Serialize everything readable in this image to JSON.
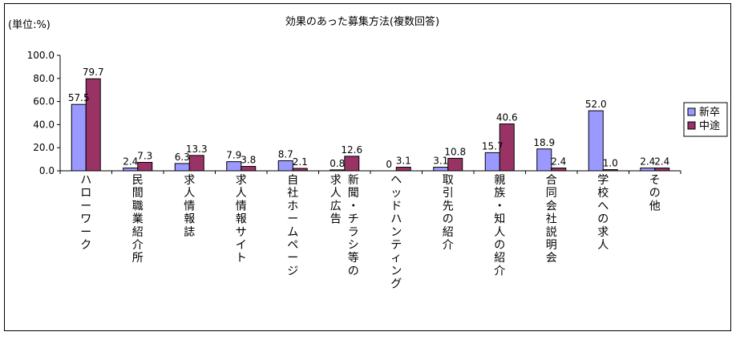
{
  "chart_data": {
    "type": "bar",
    "title": "効果のあった募集方法(複数回答)",
    "unit_label": "(単位:%)",
    "ylim": [
      0,
      100
    ],
    "y_ticks": [
      "0.0",
      "20.0",
      "40.0",
      "60.0",
      "80.0",
      "100.0"
    ],
    "categories": [
      [
        "ハローワーク"
      ],
      [
        "民間職業紹介所"
      ],
      [
        "求人情報誌"
      ],
      [
        "求人情報サイト"
      ],
      [
        "自社ホームページ"
      ],
      [
        "新聞・チラシ等の",
        "求人広告"
      ],
      [
        "ヘッドハンティング"
      ],
      [
        "取引先の紹介"
      ],
      [
        "親族・知人の紹介"
      ],
      [
        "合同会社説明会"
      ],
      [
        "学校への求人"
      ],
      [
        "その他"
      ]
    ],
    "series": [
      {
        "name": "新卒",
        "color": "#9999ff",
        "values": [
          57.5,
          2.4,
          6.3,
          7.9,
          8.7,
          0.8,
          0,
          3.1,
          15.7,
          18.9,
          52.0,
          2.4
        ],
        "labels": [
          "57.5",
          "2.4",
          "6.3",
          "7.9",
          "8.7",
          "0.8",
          "0",
          "3.1",
          "15.7",
          "18.9",
          "52.0",
          "2.4"
        ]
      },
      {
        "name": "中途",
        "color": "#993366",
        "values": [
          79.7,
          7.3,
          13.3,
          3.8,
          2.1,
          12.6,
          3.1,
          10.8,
          40.6,
          2.4,
          1.0,
          2.4
        ],
        "labels": [
          "79.7",
          "7.3",
          "13.3",
          "3.8",
          "2.1",
          "12.6",
          "3.1",
          "10.8",
          "40.6",
          "2.4",
          "1.0",
          "2.4"
        ]
      }
    ],
    "legend_position": "right",
    "grid": false
  }
}
